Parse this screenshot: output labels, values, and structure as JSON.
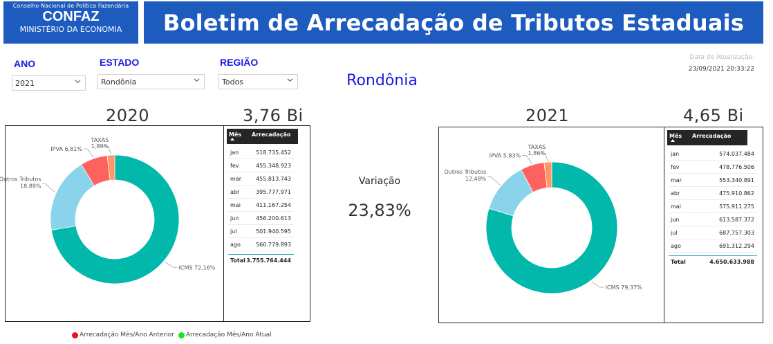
{
  "header": {
    "org_small": "Conselho Nacional de Política Fazendária",
    "org_big": "CONFAZ",
    "org_sub": "MINISTÉRIO DA ECONOMIA",
    "title": "Boletim de Arrecadação de Tributos Estaduais"
  },
  "filters": {
    "ano_label": "ANO",
    "ano_value": "2021",
    "estado_label": "ESTADO",
    "estado_value": "Rondônia",
    "regiao_label": "REGIÃO",
    "regiao_value": "Todos"
  },
  "update": {
    "label": "Data de Atualização:",
    "value": "23/09/2021 20:33:22"
  },
  "state_name": "Rondônia",
  "colors": {
    "brand": "#1e5bbf",
    "icms": "#01b8aa",
    "outros": "#8ad4eb",
    "ipva": "#fd625e",
    "taxas": "#fe9666",
    "anterior": "#e81123",
    "atual": "#11e81b"
  },
  "left": {
    "year": "2020",
    "total_big": "3,76 Bi",
    "table": {
      "col_mes": "Mês",
      "col_arr": "Arrecadação",
      "rows": [
        {
          "mes": "jan",
          "valor": "518.735.452"
        },
        {
          "mes": "fev",
          "valor": "455.348.923"
        },
        {
          "mes": "mar",
          "valor": "455.813.743"
        },
        {
          "mes": "abr",
          "valor": "395.777.971"
        },
        {
          "mes": "mai",
          "valor": "411.167.254"
        },
        {
          "mes": "jun",
          "valor": "456.200.613"
        },
        {
          "mes": "jul",
          "valor": "501.940.595"
        },
        {
          "mes": "ago",
          "valor": "560.779.893"
        }
      ],
      "total_label": "Total",
      "total_value": "3.755.764.444"
    }
  },
  "right": {
    "year": "2021",
    "total_big": "4,65 Bi",
    "table": {
      "col_mes": "Mês",
      "col_arr": "Arrecadação",
      "rows": [
        {
          "mes": "jan",
          "valor": "574.037.484"
        },
        {
          "mes": "fev",
          "valor": "478.776.506"
        },
        {
          "mes": "mar",
          "valor": "553.340.891"
        },
        {
          "mes": "abr",
          "valor": "475.910.862"
        },
        {
          "mes": "mai",
          "valor": "575.911.275"
        },
        {
          "mes": "jun",
          "valor": "613.587.372"
        },
        {
          "mes": "jul",
          "valor": "687.757.303"
        },
        {
          "mes": "ago",
          "valor": "691.312.294"
        }
      ],
      "total_label": "Total",
      "total_value": "4.650.633.988"
    }
  },
  "variation": {
    "label": "Variação",
    "value": "23,83%"
  },
  "legend": {
    "anterior": "Arrecadação Mês/Ano Anterior",
    "atual": "Arrecadação Mês/Ano Atual"
  },
  "chart_data": [
    {
      "type": "pie",
      "title": "2020",
      "slices": [
        {
          "name": "ICMS",
          "label": "ICMS 72,16%",
          "value": 72.16
        },
        {
          "name": "Outros Tributos",
          "label_line1": "Outros Tributos",
          "label_line2": "18,89%",
          "value": 18.89
        },
        {
          "name": "IPVA",
          "label": "IPVA 6,81%",
          "value": 6.81
        },
        {
          "name": "TAXAS",
          "label_line1": "TAXAS",
          "label_line2": "1,89%",
          "value": 1.89
        }
      ]
    },
    {
      "type": "pie",
      "title": "2021",
      "slices": [
        {
          "name": "ICMS",
          "label": "ICMS 79,37%",
          "value": 79.37
        },
        {
          "name": "Outros Tributos",
          "label_line1": "Outros Tributos",
          "label_line2": "12,48%",
          "value": 12.48
        },
        {
          "name": "IPVA",
          "label": "IPVA 5,83%",
          "value": 5.83
        },
        {
          "name": "TAXAS",
          "label_line1": "TAXAS",
          "label_line2": "1,86%",
          "value": 1.86
        }
      ]
    }
  ]
}
